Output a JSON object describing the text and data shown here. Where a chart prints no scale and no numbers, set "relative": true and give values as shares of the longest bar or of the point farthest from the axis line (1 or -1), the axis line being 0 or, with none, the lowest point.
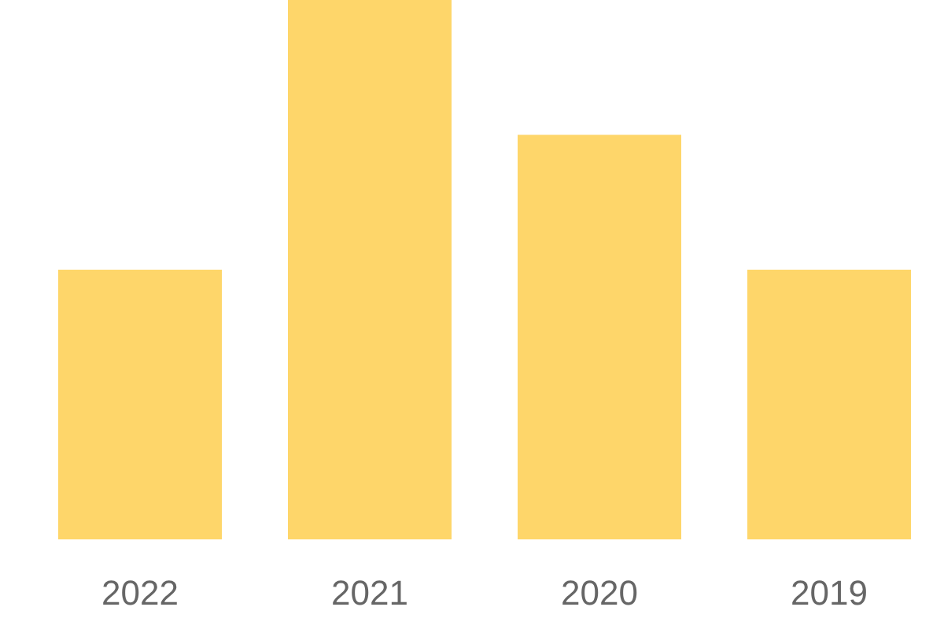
{
  "chart_data": {
    "type": "bar",
    "relative": true,
    "categories": [
      "2022",
      "2021",
      "2020",
      "2019"
    ],
    "values": [
      0.5,
      1,
      0.75,
      0.5
    ],
    "color": "#fed66a"
  }
}
